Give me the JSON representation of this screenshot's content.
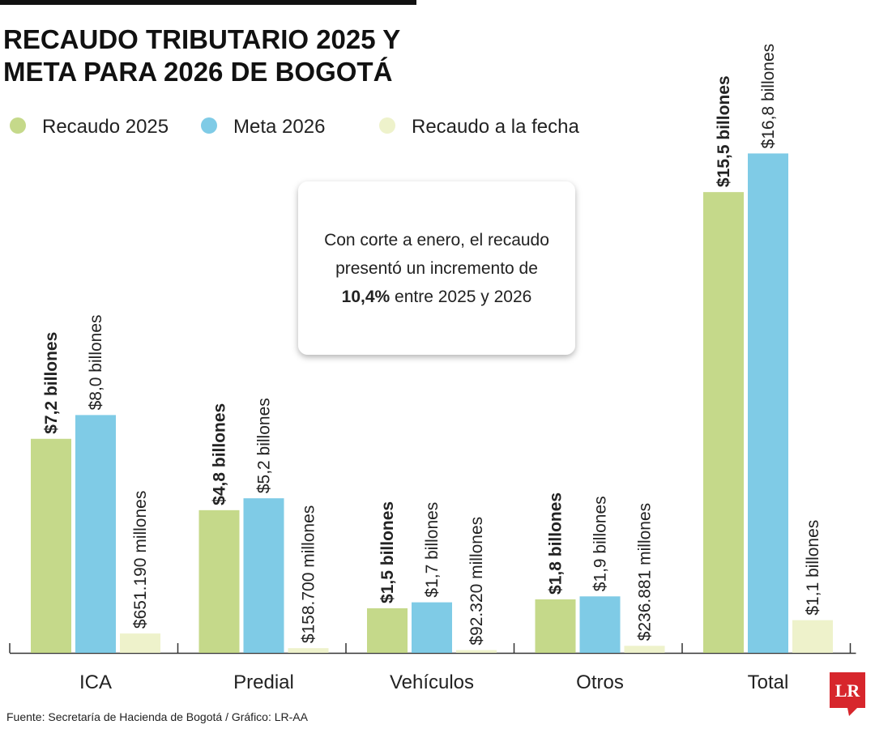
{
  "chart_data": {
    "type": "bar",
    "title": [
      "RECAUDO TRIBUTARIO 2025 Y",
      "META PARA 2026 DE BOGOTÁ"
    ],
    "categories": [
      "ICA",
      "Predial",
      "Vehículos",
      "Otros",
      "Total"
    ],
    "series": [
      {
        "name": "Recaudo 2025",
        "color": "#c5d98a",
        "values": [
          7.2,
          4.8,
          1.5,
          1.8,
          15.5
        ],
        "value_labels": [
          "$7,2 billones",
          "$4,8 billones",
          "$1,5 billones",
          "$1,8 billones",
          "$15,5 billones"
        ]
      },
      {
        "name": "Meta 2026",
        "color": "#7fcbe6",
        "values": [
          8.0,
          5.2,
          1.7,
          1.9,
          16.8
        ],
        "value_labels": [
          "$8,0 billones",
          "$5,2 billones",
          "$1,7 billones",
          "$1,9 billones",
          "$16,8 billones"
        ]
      },
      {
        "name": "Recaudo a la fecha",
        "color": "#eef2cb",
        "values": [
          0.65119,
          0.1587,
          0.09232,
          0.236881,
          1.1
        ],
        "value_labels": [
          "$651.190 millones",
          "$158.700 millones",
          "$92.320 millones",
          "$236.881 millones",
          "$1,1 billones"
        ]
      }
    ],
    "annotation": [
      "Con corte a enero, el recaudo",
      "presentó un incremento de",
      "10,4%",
      "entre 2025 y 2026"
    ],
    "source": "Fuente: Secretaría de Hacienda de Bogotá / Gráfico: LR-AA",
    "logo": "LR"
  }
}
